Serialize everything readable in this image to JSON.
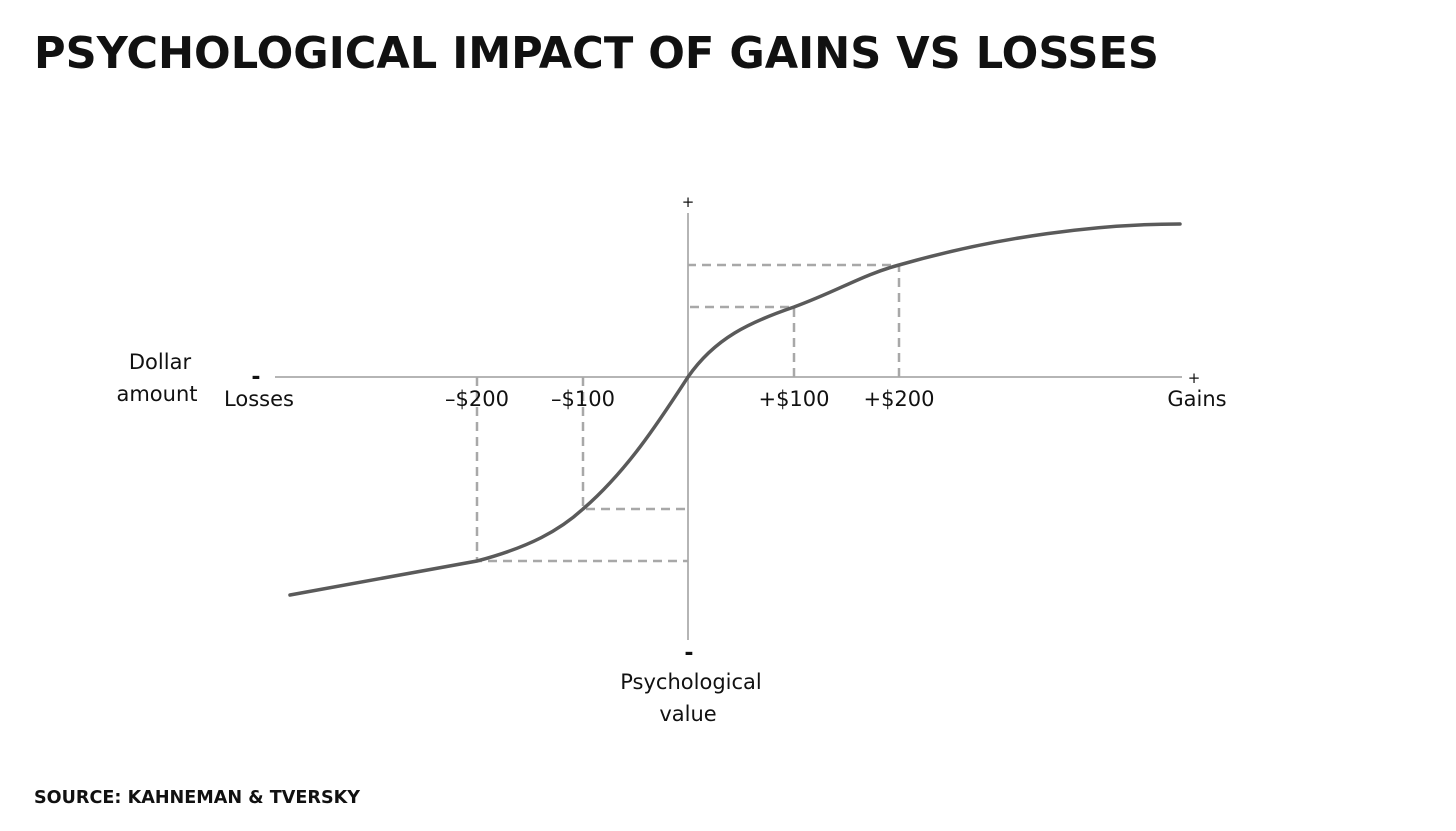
{
  "header": {
    "title": "PSYCHOLOGICAL IMPACT OF GAINS VS LOSSES",
    "source": "SOURCE: KAHNEMAN & TVERSKY"
  },
  "axes": {
    "x": {
      "label_lines": [
        "Dollar",
        "amount"
      ],
      "negative_end": "Losses",
      "positive_end": "Gains",
      "negative_sign": "-",
      "positive_sign": "+"
    },
    "y": {
      "label_lines": [
        "Psychological",
        "value"
      ],
      "positive_sign": "+",
      "negative_sign": "-"
    }
  },
  "ticks": [
    "–$200",
    "–$100",
    "+$100",
    "+$200"
  ]
}
